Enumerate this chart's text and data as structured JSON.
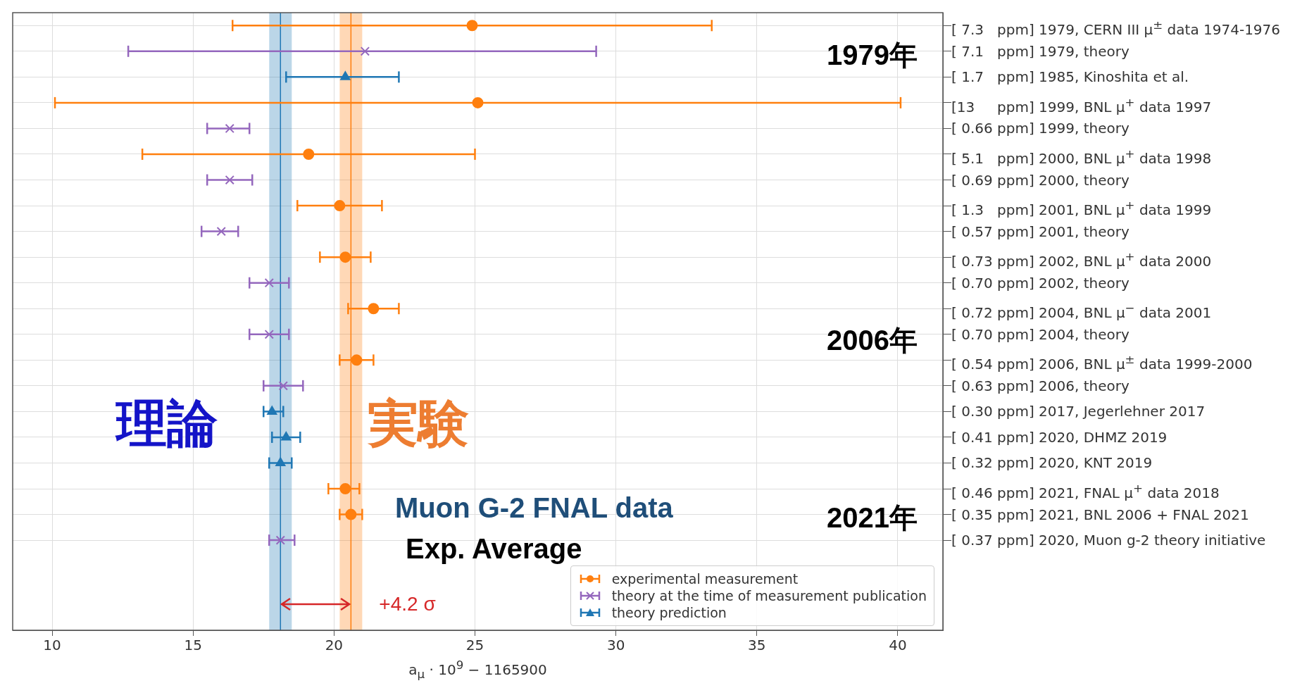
{
  "chart_data": {
    "type": "scatter",
    "orientation": "horizontal",
    "xlabel": "a$_{μ}$ · 10$^{9}$ − 1165900",
    "categories": [
      "[ 7.3   ppm] 1979, CERN III μ$^{±}$ data 1974-1976",
      "[ 7.1   ppm] 1979, theory",
      "[ 1.7   ppm] 1985, Kinoshita et al.",
      "[13     ppm] 1999, BNL μ$^{+}$ data 1997",
      "[ 0.66 ppm] 1999, theory",
      "[ 5.1   ppm] 2000, BNL μ$^{+}$ data 1998",
      "[ 0.69 ppm] 2000, theory",
      "[ 1.3   ppm] 2001, BNL μ$^{+}$ data 1999",
      "[ 0.57 ppm] 2001, theory",
      "[ 0.73 ppm] 2002, BNL μ$^{+}$ data 2000",
      "[ 0.70 ppm] 2002, theory",
      "[ 0.72 ppm] 2004, BNL μ$^{−}$ data 2001",
      "[ 0.70 ppm] 2004, theory",
      "[ 0.54 ppm] 2006, BNL μ$^{±}$ data 1999-2000",
      "[ 0.63 ppm] 2006, theory",
      "[ 0.30 ppm] 2017, Jegerlehner 2017",
      "[ 0.41 ppm] 2020, DHMZ 2019",
      "[ 0.32 ppm] 2020, KNT 2019",
      "[ 0.46 ppm] 2021, FNAL μ$^{+}$ data 2018",
      "[ 0.35 ppm] 2021, BNL 2006 + FNAL 2021",
      "[ 0.37 ppm] 2020, Muon g-2 theory initiative",
      null,
      null,
      null
    ],
    "series": [
      {
        "name": "experimental measurement",
        "color": "#ff7f0e",
        "marker": "circle",
        "values": [
          24.9,
          null,
          null,
          25.1,
          null,
          19.1,
          null,
          20.2,
          null,
          20.4,
          null,
          21.4,
          null,
          20.8,
          null,
          null,
          null,
          null,
          20.4,
          20.6,
          null,
          null,
          null,
          null
        ],
        "errors": [
          [
            16.4,
            33.4
          ],
          null,
          null,
          [
            10.1,
            40.1
          ],
          null,
          [
            13.2,
            25.0
          ],
          null,
          [
            18.7,
            21.7
          ],
          null,
          [
            19.5,
            21.3
          ],
          null,
          [
            20.5,
            22.3
          ],
          null,
          [
            20.2,
            21.4
          ],
          null,
          null,
          null,
          null,
          [
            19.8,
            20.9
          ],
          [
            20.2,
            21.0
          ],
          null,
          null,
          null,
          null
        ]
      },
      {
        "name": "theory at the time of measurement publication",
        "color": "#9467bd",
        "marker": "cross",
        "values": [
          null,
          21.1,
          null,
          null,
          16.3,
          null,
          16.3,
          null,
          16.0,
          null,
          17.7,
          null,
          17.7,
          null,
          18.2,
          null,
          null,
          null,
          null,
          null,
          18.1,
          null,
          null,
          null
        ],
        "errors": [
          null,
          [
            12.7,
            29.3
          ],
          null,
          null,
          [
            15.5,
            17.0
          ],
          null,
          [
            15.5,
            17.1
          ],
          null,
          [
            15.3,
            16.6
          ],
          null,
          [
            17.0,
            18.4
          ],
          null,
          [
            17.0,
            18.4
          ],
          null,
          [
            17.5,
            18.9
          ],
          null,
          null,
          null,
          null,
          null,
          [
            17.7,
            18.6
          ],
          null,
          null,
          null
        ]
      },
      {
        "name": "theory prediction",
        "color": "#1f77b4",
        "marker": "triangle",
        "values": [
          null,
          null,
          20.4,
          null,
          null,
          null,
          null,
          null,
          null,
          null,
          null,
          null,
          null,
          null,
          null,
          17.8,
          18.3,
          18.1,
          null,
          null,
          null,
          null,
          null,
          null
        ],
        "errors": [
          null,
          null,
          [
            18.3,
            22.3
          ],
          null,
          null,
          null,
          null,
          null,
          null,
          null,
          null,
          null,
          null,
          null,
          null,
          [
            17.5,
            18.2
          ],
          [
            17.8,
            18.8
          ],
          [
            17.7,
            18.5
          ],
          null,
          null,
          null,
          null,
          null,
          null
        ]
      }
    ],
    "xlim": [
      8.6,
      41.6
    ],
    "xticks": [
      10,
      15,
      20,
      25,
      30,
      35,
      40
    ],
    "bands": [
      {
        "axis": "x",
        "from": 17.7,
        "to": 18.5,
        "color": "#1f77b4"
      },
      {
        "axis": "x",
        "from": 20.2,
        "to": 21.0,
        "color": "#ff7f0e"
      }
    ],
    "ref_lines": [
      {
        "axis": "x",
        "value": 18.1,
        "color": "#1f77b4"
      },
      {
        "axis": "x",
        "value": 20.6,
        "color": "#ff7f0e"
      }
    ],
    "annotations": [
      "1979年",
      "2006年",
      "2021年",
      {
        "text": "理論",
        "x": 18.1
      },
      "実験",
      "Muon G-2 FNAL data",
      "Exp. Average",
      {
        "text": "+4.2 σ",
        "x": 20.6
      }
    ],
    "grid": true,
    "legend": "bottom right"
  }
}
